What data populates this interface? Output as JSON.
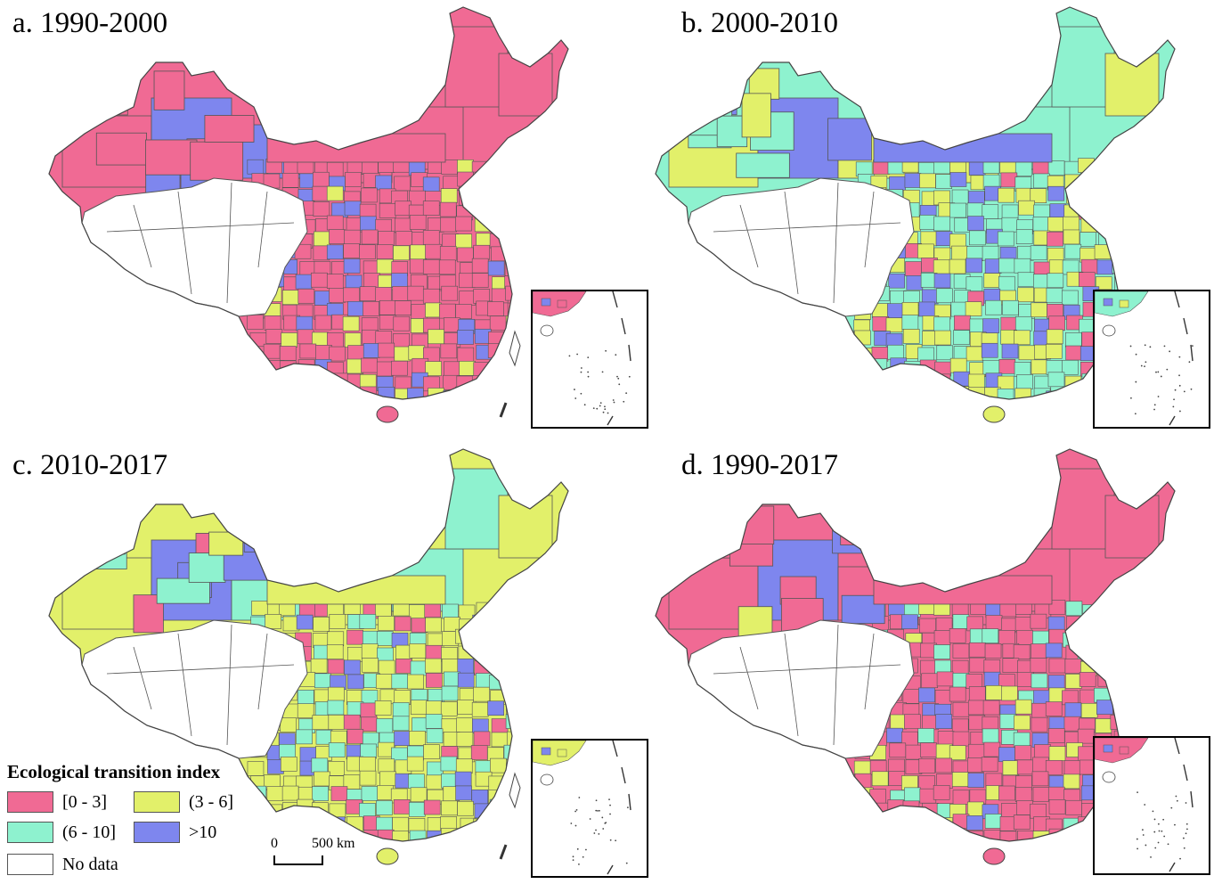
{
  "colors": {
    "c0_3": "#f06a94",
    "c3_6": "#e2f06a",
    "c6_10": "#8ef2cf",
    "c10": "#7e86ee",
    "nodata": "#ffffff",
    "border": "#555555"
  },
  "panels": [
    {
      "title": "a. 1990-2000",
      "dominant": "c0_3",
      "mix": [
        "c0_3",
        "c0_3",
        "c0_3",
        "c0_3",
        "c0_3",
        "c0_3",
        "c3_6",
        "c10"
      ],
      "north": "c0_3",
      "inner": "c0_3"
    },
    {
      "title": "b. 2000-2010",
      "dominant": "c6_10",
      "mix": [
        "c6_10",
        "c3_6",
        "c3_6",
        "c6_10",
        "c0_3",
        "c3_6",
        "c6_10",
        "c10"
      ],
      "north": "c3_6",
      "inner": "c10"
    },
    {
      "title": "c. 2010-2017",
      "dominant": "c3_6",
      "mix": [
        "c3_6",
        "c3_6",
        "c6_10",
        "c3_6",
        "c0_3",
        "c3_6",
        "c6_10",
        "c10"
      ],
      "north": "c3_6",
      "inner": "c3_6"
    },
    {
      "title": "d. 1990-2017",
      "dominant": "c0_3",
      "mix": [
        "c0_3",
        "c0_3",
        "c0_3",
        "c3_6",
        "c0_3",
        "c6_10",
        "c0_3",
        "c10"
      ],
      "north": "c0_3",
      "inner": "c0_3"
    }
  ],
  "legend": {
    "title": "Ecological transition index",
    "items": [
      {
        "label": "[0 - 3]",
        "color": "c0_3"
      },
      {
        "label": "(3 - 6]",
        "color": "c3_6"
      },
      {
        "label": "(6 - 10]",
        "color": "c6_10"
      },
      {
        "label": ">10",
        "color": "c10"
      },
      {
        "label": "No data",
        "color": "nodata"
      }
    ]
  },
  "scalebar": {
    "start": "0",
    "end": "500 km"
  }
}
